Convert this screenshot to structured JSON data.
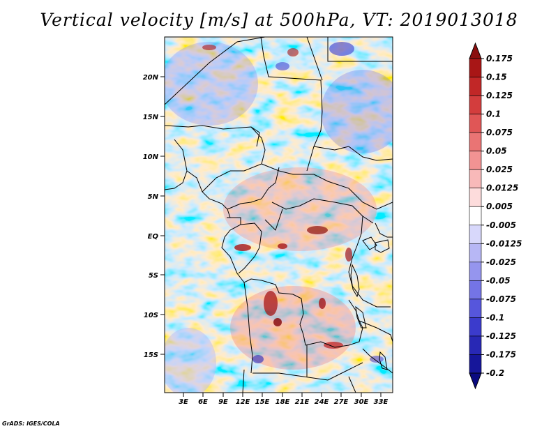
{
  "title": "Vertical velocity [m/s] at 500hPa, VT: 2019013018",
  "credit": "GrADS: IGES/COLA",
  "lat_ticks": [
    "20N",
    "15N",
    "10N",
    "5N",
    "EQ",
    "5S",
    "10S",
    "15S"
  ],
  "lon_ticks": [
    "3E",
    "6E",
    "9E",
    "12E",
    "15E",
    "18E",
    "21E",
    "24E",
    "27E",
    "30E",
    "33E"
  ],
  "colorbar": {
    "labels": [
      "0.175",
      "0.15",
      "0.125",
      "0.1",
      "0.075",
      "0.05",
      "0.025",
      "0.0125",
      "0.005",
      "-0.005",
      "-0.0125",
      "-0.025",
      "-0.05",
      "-0.075",
      "-0.1",
      "-0.125",
      "-0.175",
      "-0.2"
    ],
    "colors": [
      "#8b0f0f",
      "#a81616",
      "#c12727",
      "#d33d3d",
      "#e05656",
      "#ea7474",
      "#f29393",
      "#f8b9b9",
      "#fddcdc",
      "#ffffff",
      "#d8d8fb",
      "#b7b7f5",
      "#9595ee",
      "#7474e6",
      "#5656dc",
      "#3b3bcc",
      "#2828b5",
      "#16169a",
      "#0a0a80"
    ]
  }
}
